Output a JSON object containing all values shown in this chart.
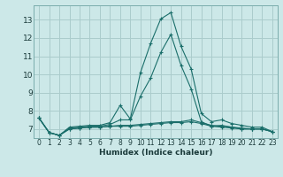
{
  "xlabel": "Humidex (Indice chaleur)",
  "bg_color": "#cce8e8",
  "grid_color": "#aacccc",
  "line_color": "#1a6e6a",
  "xlim": [
    -0.5,
    23.5
  ],
  "ylim": [
    6.5,
    13.8
  ],
  "yticks": [
    7,
    8,
    9,
    10,
    11,
    12,
    13
  ],
  "xticks": [
    0,
    1,
    2,
    3,
    4,
    5,
    6,
    7,
    8,
    9,
    10,
    11,
    12,
    13,
    14,
    15,
    16,
    17,
    18,
    19,
    20,
    21,
    22,
    23
  ],
  "lines": [
    {
      "x": [
        0,
        1,
        2,
        3,
        4,
        5,
        6,
        7,
        8,
        9,
        10,
        11,
        12,
        13,
        14,
        15,
        16,
        17,
        18,
        19,
        20,
        21,
        22,
        23
      ],
      "y": [
        7.6,
        6.8,
        6.65,
        7.1,
        7.15,
        7.2,
        7.2,
        7.35,
        8.3,
        7.55,
        10.1,
        11.7,
        13.05,
        13.4,
        11.55,
        10.3,
        7.85,
        7.4,
        7.5,
        7.3,
        7.2,
        7.1,
        7.1,
        6.85
      ]
    },
    {
      "x": [
        0,
        1,
        2,
        3,
        4,
        5,
        6,
        7,
        8,
        9,
        10,
        11,
        12,
        13,
        14,
        15,
        16,
        17,
        18,
        19,
        20,
        21,
        22,
        23
      ],
      "y": [
        7.6,
        6.8,
        6.65,
        7.05,
        7.1,
        7.15,
        7.15,
        7.25,
        7.5,
        7.5,
        8.8,
        9.8,
        11.2,
        12.2,
        10.5,
        9.2,
        7.4,
        7.15,
        7.2,
        7.1,
        7.05,
        7.0,
        7.0,
        6.85
      ]
    },
    {
      "x": [
        0,
        1,
        2,
        3,
        4,
        5,
        6,
        7,
        8,
        9,
        10,
        11,
        12,
        13,
        14,
        15,
        16,
        17,
        18,
        19,
        20,
        21,
        22,
        23
      ],
      "y": [
        7.6,
        6.8,
        6.65,
        7.0,
        7.05,
        7.1,
        7.1,
        7.15,
        7.2,
        7.2,
        7.25,
        7.3,
        7.35,
        7.4,
        7.4,
        7.5,
        7.35,
        7.2,
        7.15,
        7.1,
        7.0,
        7.0,
        7.0,
        6.85
      ]
    },
    {
      "x": [
        0,
        1,
        2,
        3,
        4,
        5,
        6,
        7,
        8,
        9,
        10,
        11,
        12,
        13,
        14,
        15,
        16,
        17,
        18,
        19,
        20,
        21,
        22,
        23
      ],
      "y": [
        7.6,
        6.8,
        6.65,
        7.0,
        7.05,
        7.1,
        7.1,
        7.15,
        7.15,
        7.15,
        7.2,
        7.25,
        7.3,
        7.35,
        7.35,
        7.4,
        7.3,
        7.15,
        7.1,
        7.05,
        7.0,
        7.0,
        7.0,
        6.85
      ]
    }
  ]
}
